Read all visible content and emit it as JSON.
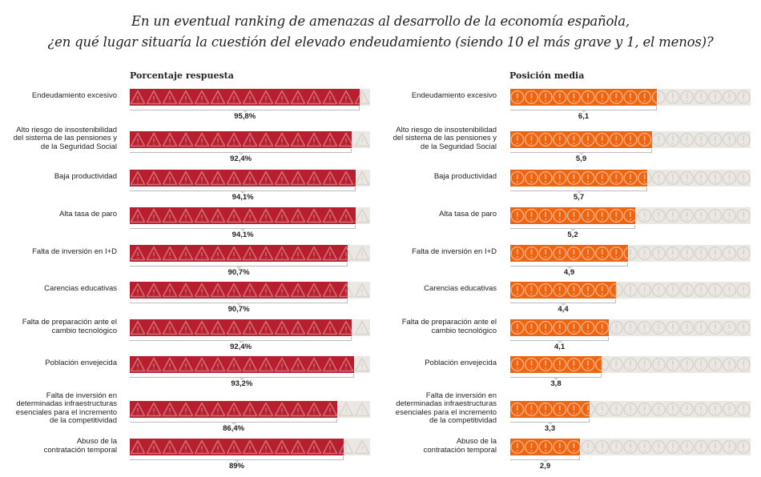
{
  "title_lines": [
    "En un eventual ranking de amenazas al desarrollo de la economía española,",
    "¿en qué lugar situaría la cuestión del elevado endeudamiento (siendo 10 el más grave y 1, el menos)?"
  ],
  "colors": {
    "red": "#b81f2e",
    "orange": "#ee6511",
    "track": "#ebe8e4"
  },
  "chart_data": [
    {
      "type": "bar",
      "orientation": "horizontal",
      "title": "Porcentaje respuesta",
      "icon": "warning-triangle-icon",
      "unit": "%",
      "xlim": [
        0,
        100
      ],
      "categories": [
        "Endeudamiento excesivo",
        "Alto riesgo de insostenibilidad del sistema de las pensiones y de la Seguridad Social",
        "Baja productividad",
        "Alta tasa de paro",
        "Falta de inversión en I+D",
        "Carencias educativas",
        "Falta de preparación ante el cambio tecnológico",
        "Población envejecida",
        "Falta de inversión en determinadas infraestructuras esenciales para el incremento de la competitividad",
        "Abuso de la contratación temporal"
      ],
      "values": [
        95.8,
        92.4,
        94.1,
        94.1,
        90.7,
        90.7,
        92.4,
        93.2,
        86.4,
        89
      ],
      "value_labels": [
        "95,8%",
        "92,4%",
        "94,1%",
        "94,1%",
        "90,7%",
        "90,7%",
        "92,4%",
        "93,2%",
        "86,4%",
        "89%"
      ]
    },
    {
      "type": "bar",
      "orientation": "horizontal",
      "title": "Posición media",
      "icon": "exclamation-circle-icon",
      "xlim": [
        0,
        10
      ],
      "categories": [
        "Endeudamiento excesivo",
        "Alto riesgo de insostenibilidad del sistema de las pensiones y de la Seguridad Social",
        "Baja productividad",
        "Alta tasa de paro",
        "Falta de inversión en I+D",
        "Carencias educativas",
        "Falta de preparación ante el cambio tecnológico",
        "Población envejecida",
        "Falta de inversión en determinadas infraestructuras esenciales para el incremento de la competitividad",
        "Abuso de la contratación temporal"
      ],
      "values": [
        6.1,
        5.9,
        5.7,
        5.2,
        4.9,
        4.4,
        4.1,
        3.8,
        3.3,
        2.9
      ],
      "value_labels": [
        "6,1",
        "5,9",
        "5,7",
        "5,2",
        "4,9",
        "4,4",
        "4,1",
        "3,8",
        "3,3",
        "2,9"
      ]
    }
  ],
  "row_label_lines": [
    [
      "Endeudamiento excesivo"
    ],
    [
      "Alto riesgo de insostenibilidad",
      "del sistema de las pensiones y",
      "de la Seguridad Social"
    ],
    [
      "Baja productividad"
    ],
    [
      "Alta tasa de paro"
    ],
    [
      "Falta de inversión en I+D"
    ],
    [
      "Carencias educativas"
    ],
    [
      "Falta de preparación ante el",
      "cambio tecnológico"
    ],
    [
      "Población envejecida"
    ],
    [
      "Falta de inversión en",
      "determinadas infraestructuras",
      "esenciales para el incremento",
      "de la competitividad"
    ],
    [
      "Abuso de la",
      "contratación temporal"
    ]
  ]
}
